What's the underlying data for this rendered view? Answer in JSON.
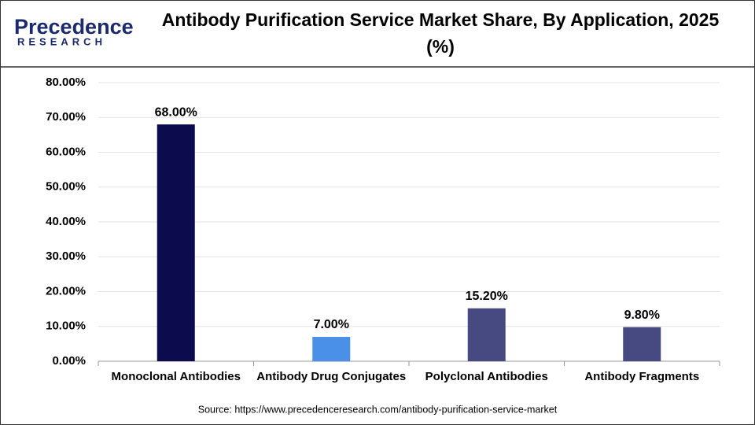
{
  "logo": {
    "name": "Precedence",
    "tagline": "RESEARCH"
  },
  "chart_data": {
    "type": "bar",
    "title": "Antibody Purification Service Market Share, By Application, 2025 (%)",
    "categories": [
      "Monoclonal Antibodies",
      "Antibody Drug Conjugates",
      "Polyclonal Antibodies",
      "Antibody Fragments"
    ],
    "values": [
      68.0,
      7.0,
      15.2,
      9.8
    ],
    "value_labels": [
      "68.00%",
      "7.00%",
      "15.20%",
      "9.80%"
    ],
    "colors": [
      "#0b0b4d",
      "#4a90e8",
      "#474a80",
      "#474a80"
    ],
    "ylim": [
      0,
      80
    ],
    "yticks": [
      {
        "value": 0,
        "label": "0.00%"
      },
      {
        "value": 10,
        "label": "10.00%"
      },
      {
        "value": 20,
        "label": "20.00%"
      },
      {
        "value": 30,
        "label": "30.00%"
      },
      {
        "value": 40,
        "label": "40.00%"
      },
      {
        "value": 50,
        "label": "50.00%"
      },
      {
        "value": 60,
        "label": "60.00%"
      },
      {
        "value": 70,
        "label": "70.00%"
      },
      {
        "value": 80,
        "label": "80.00%"
      }
    ],
    "grid": true,
    "source": "Source: https://www.precedenceresearch.com/antibody-purification-service-market"
  }
}
